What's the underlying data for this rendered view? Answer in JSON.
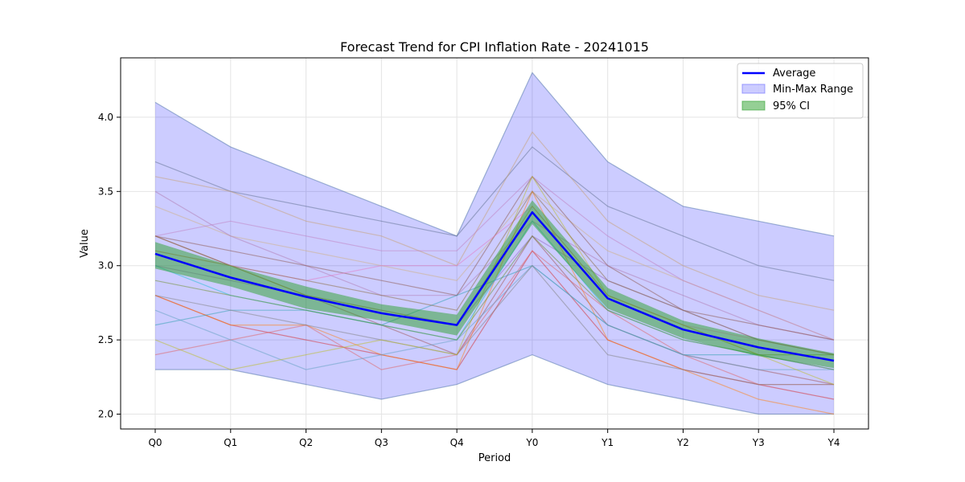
{
  "chart_data": {
    "type": "line",
    "title": "Forecast Trend for CPI Inflation Rate - 20241015",
    "xlabel": "Period",
    "ylabel": "Value",
    "categories": [
      "Q0",
      "Q1",
      "Q2",
      "Q3",
      "Q4",
      "Y0",
      "Y1",
      "Y2",
      "Y3",
      "Y4"
    ],
    "ylim": [
      1.9,
      4.4
    ],
    "yticks": [
      2.0,
      2.5,
      3.0,
      3.5,
      4.0
    ],
    "grid": true,
    "legend_position": "top-right",
    "legend": {
      "average": "Average",
      "range": "Min-Max Range",
      "ci": "95% CI"
    },
    "average": [
      3.08,
      2.92,
      2.79,
      2.68,
      2.6,
      3.36,
      2.78,
      2.57,
      2.45,
      2.36
    ],
    "ci_lower": [
      2.98,
      2.86,
      2.71,
      2.63,
      2.53,
      3.28,
      2.71,
      2.51,
      2.39,
      2.31
    ],
    "ci_upper": [
      3.16,
      3.0,
      2.86,
      2.74,
      2.67,
      3.44,
      2.85,
      2.63,
      2.51,
      2.41
    ],
    "min": [
      2.3,
      2.3,
      2.2,
      2.1,
      2.2,
      2.4,
      2.2,
      2.1,
      2.0,
      2.0
    ],
    "max": [
      4.1,
      3.8,
      3.6,
      3.4,
      3.2,
      4.3,
      3.7,
      3.4,
      3.3,
      3.2
    ],
    "forecasters": [
      {
        "color": "#4a6fa5",
        "values": [
          2.3,
          2.3,
          2.2,
          2.1,
          2.2,
          2.4,
          2.2,
          2.1,
          2.0,
          2.0
        ]
      },
      {
        "color": "#4a6fa5",
        "values": [
          4.1,
          3.8,
          3.6,
          3.4,
          3.2,
          4.3,
          3.7,
          3.4,
          3.3,
          3.2
        ]
      },
      {
        "color": "#607090",
        "values": [
          3.7,
          3.5,
          3.4,
          3.3,
          3.2,
          3.8,
          3.4,
          3.2,
          3.0,
          2.9
        ]
      },
      {
        "color": "#c8a070",
        "values": [
          3.6,
          3.5,
          3.3,
          3.2,
          3.0,
          3.9,
          3.3,
          3.0,
          2.8,
          2.7
        ]
      },
      {
        "color": "#d0b080",
        "values": [
          3.4,
          3.2,
          3.1,
          3.0,
          2.9,
          3.5,
          3.1,
          2.9,
          2.7,
          2.5
        ]
      },
      {
        "color": "#b07ab0",
        "values": [
          3.5,
          3.2,
          3.0,
          2.8,
          2.8,
          3.3,
          3.0,
          2.8,
          2.6,
          2.5
        ]
      },
      {
        "color": "#c080c0",
        "values": [
          3.2,
          3.3,
          3.2,
          3.1,
          3.1,
          3.6,
          3.2,
          2.9,
          2.7,
          2.5
        ]
      },
      {
        "color": "#8c564b",
        "values": [
          3.2,
          3.1,
          3.0,
          2.9,
          2.8,
          3.6,
          3.0,
          2.7,
          2.6,
          2.5
        ]
      },
      {
        "color": "#a05050",
        "values": [
          3.2,
          3.0,
          2.8,
          2.6,
          2.4,
          3.2,
          2.6,
          2.4,
          2.3,
          2.2
        ]
      },
      {
        "color": "#d62728",
        "values": [
          2.8,
          2.6,
          2.5,
          2.4,
          2.3,
          3.1,
          2.5,
          2.3,
          2.2,
          2.1
        ]
      },
      {
        "color": "#ff7f0e",
        "values": [
          2.8,
          2.6,
          2.6,
          2.4,
          2.3,
          3.5,
          2.5,
          2.3,
          2.1,
          2.0
        ]
      },
      {
        "color": "#e06060",
        "values": [
          2.4,
          2.5,
          2.6,
          2.3,
          2.4,
          3.1,
          2.7,
          2.4,
          2.2,
          2.2
        ]
      },
      {
        "color": "#2ca0b0",
        "values": [
          2.6,
          2.7,
          2.7,
          2.6,
          2.8,
          3.0,
          2.6,
          2.4,
          2.4,
          2.3
        ]
      },
      {
        "color": "#5fa0c0",
        "values": [
          2.7,
          2.5,
          2.3,
          2.4,
          2.5,
          3.0,
          2.6,
          2.4,
          2.3,
          2.3
        ]
      },
      {
        "color": "#7f7f7f",
        "values": [
          2.8,
          2.7,
          2.6,
          2.5,
          2.4,
          3.0,
          2.4,
          2.3,
          2.2,
          2.2
        ]
      },
      {
        "color": "#bcbd22",
        "values": [
          2.5,
          2.3,
          2.4,
          2.5,
          2.4,
          3.6,
          2.8,
          2.6,
          2.4,
          2.2
        ]
      },
      {
        "color": "#9467bd",
        "values": [
          3.0,
          2.9,
          2.8,
          2.7,
          2.6,
          3.2,
          2.9,
          2.7,
          2.5,
          2.4
        ]
      },
      {
        "color": "#e377c2",
        "values": [
          3.1,
          3.0,
          2.9,
          3.0,
          3.0,
          3.4,
          2.8,
          2.6,
          2.5,
          2.4
        ]
      },
      {
        "color": "#17becf",
        "values": [
          3.0,
          2.8,
          2.7,
          2.6,
          2.5,
          3.3,
          2.7,
          2.5,
          2.4,
          2.3
        ]
      },
      {
        "color": "#8a6a3a",
        "values": [
          3.2,
          3.0,
          2.9,
          2.8,
          2.7,
          3.5,
          2.9,
          2.7,
          2.5,
          2.4
        ]
      },
      {
        "color": "#aa8844",
        "values": [
          3.1,
          3.0,
          2.8,
          2.7,
          2.6,
          3.4,
          2.8,
          2.6,
          2.4,
          2.3
        ]
      },
      {
        "color": "#6b8e23",
        "values": [
          2.9,
          2.8,
          2.7,
          2.6,
          2.5,
          3.2,
          2.7,
          2.5,
          2.4,
          2.4
        ]
      }
    ]
  }
}
